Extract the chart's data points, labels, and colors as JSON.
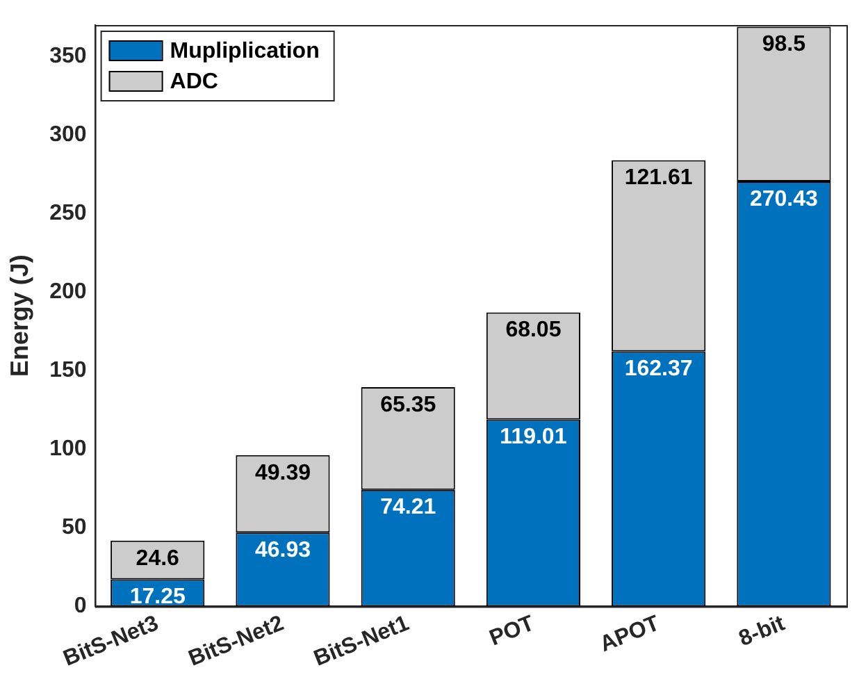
{
  "chart_data": {
    "type": "bar",
    "stacked": true,
    "ylabel": "Energy (J)",
    "categories": [
      "BitS-Net3",
      "BitS-Net2",
      "BitS-Net1",
      "POT",
      "APOT",
      "8-bit"
    ],
    "series": [
      {
        "name": "Mupliplication",
        "color": "#0072bd",
        "values": [
          17.25,
          46.93,
          74.21,
          119.01,
          162.37,
          270.43
        ]
      },
      {
        "name": "ADC",
        "color": "#cccccc",
        "values": [
          24.6,
          49.39,
          65.35,
          68.05,
          121.61,
          98.5
        ]
      }
    ],
    "ylim": [
      0,
      370
    ],
    "yticks": [
      0,
      50,
      100,
      150,
      200,
      250,
      300,
      350
    ],
    "grid": false,
    "legend": "top left",
    "data_labels": true
  }
}
